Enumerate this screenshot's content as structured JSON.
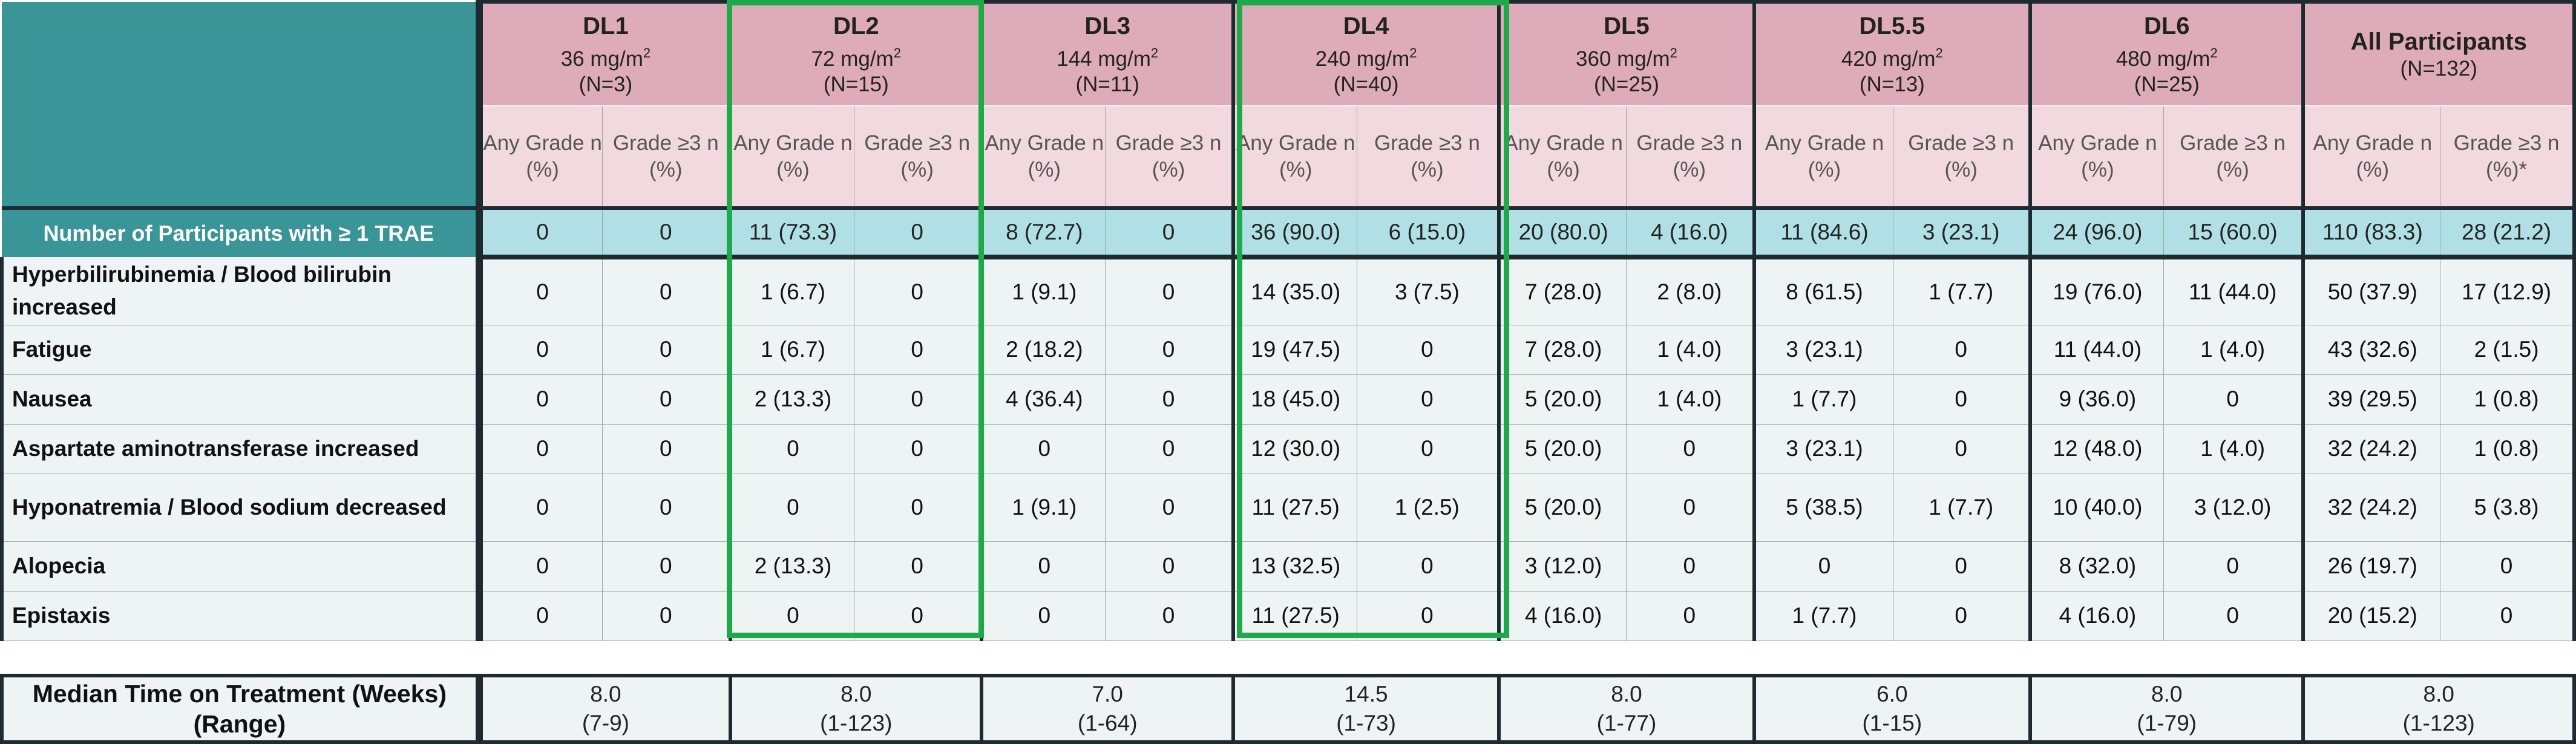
{
  "row_label_header": "",
  "dose_levels": [
    {
      "name": "DL1",
      "dose": "36 mg/m",
      "unit_sup": "2",
      "n": "(N=3)"
    },
    {
      "name": "DL2",
      "dose": "72 mg/m",
      "unit_sup": "2",
      "n": "(N=15)"
    },
    {
      "name": "DL3",
      "dose": "144 mg/m",
      "unit_sup": "2",
      "n": "(N=11)"
    },
    {
      "name": "DL4",
      "dose": "240 mg/m",
      "unit_sup": "2",
      "n": "(N=40)"
    },
    {
      "name": "DL5",
      "dose": "360 mg/m",
      "unit_sup": "2",
      "n": "(N=25)"
    },
    {
      "name": "DL5.5",
      "dose": "420 mg/m",
      "unit_sup": "2",
      "n": "(N=13)"
    },
    {
      "name": "DL6",
      "dose": "480 mg/m",
      "unit_sup": "2",
      "n": "(N=25)"
    },
    {
      "name": "All Participants",
      "dose": "",
      "unit_sup": "",
      "n": "(N=132)"
    }
  ],
  "subheaders": [
    [
      "Any Grade n (%)",
      "Grade ≥3 n (%)"
    ],
    [
      "Any Grade n (%)",
      "Grade ≥3 n (%)"
    ],
    [
      "Any Grade n (%)",
      "Grade ≥3 n (%)"
    ],
    [
      "Any Grade n (%)",
      "Grade ≥3 n (%)"
    ],
    [
      "Any Grade n (%)",
      "Grade ≥3 n (%)"
    ],
    [
      "Any Grade n (%)",
      "Grade ≥3 n (%)"
    ],
    [
      "Any Grade n (%)",
      "Grade ≥3 n (%)"
    ],
    [
      "Any Grade n (%)",
      "Grade ≥3 n (%)*"
    ]
  ],
  "trae_row": {
    "label": "Number of Participants with ≥ 1 TRAE",
    "values": [
      "0",
      "0",
      "11 (73.3)",
      "0",
      "8 (72.7)",
      "0",
      "36 (90.0)",
      "6 (15.0)",
      "20 (80.0)",
      "4 (16.0)",
      "11 (84.6)",
      "3 (23.1)",
      "24 (96.0)",
      "15 (60.0)",
      "110 (83.3)",
      "28 (21.2)"
    ]
  },
  "adverse_events": [
    {
      "label": "Hyperbilirubinemia / Blood bilirubin increased",
      "values": [
        "0",
        "0",
        "1 (6.7)",
        "0",
        "1 (9.1)",
        "0",
        "14 (35.0)",
        "3 (7.5)",
        "7 (28.0)",
        "2 (8.0)",
        "8 (61.5)",
        "1 (7.7)",
        "19 (76.0)",
        "11 (44.0)",
        "50 (37.9)",
        "17 (12.9)"
      ]
    },
    {
      "label": "Fatigue",
      "values": [
        "0",
        "0",
        "1 (6.7)",
        "0",
        "2 (18.2)",
        "0",
        "19 (47.5)",
        "0",
        "7 (28.0)",
        "1 (4.0)",
        "3 (23.1)",
        "0",
        "11 (44.0)",
        "1 (4.0)",
        "43 (32.6)",
        "2 (1.5)"
      ]
    },
    {
      "label": "Nausea",
      "values": [
        "0",
        "0",
        "2 (13.3)",
        "0",
        "4 (36.4)",
        "0",
        "18 (45.0)",
        "0",
        "5 (20.0)",
        "1 (4.0)",
        "1 (7.7)",
        "0",
        "9 (36.0)",
        "0",
        "39 (29.5)",
        "1 (0.8)"
      ]
    },
    {
      "label": "Aspartate aminotransferase increased",
      "values": [
        "0",
        "0",
        "0",
        "0",
        "0",
        "0",
        "12 (30.0)",
        "0",
        "5 (20.0)",
        "0",
        "3 (23.1)",
        "0",
        "12 (48.0)",
        "1 (4.0)",
        "32 (24.2)",
        "1 (0.8)"
      ]
    },
    {
      "label": "Hyponatremia / Blood sodium decreased",
      "values": [
        "0",
        "0",
        "0",
        "0",
        "1 (9.1)",
        "0",
        "11 (27.5)",
        "1 (2.5)",
        "5 (20.0)",
        "0",
        "5 (38.5)",
        "1 (7.7)",
        "10 (40.0)",
        "3 (12.0)",
        "32 (24.2)",
        "5 (3.8)"
      ]
    },
    {
      "label": "Alopecia",
      "values": [
        "0",
        "0",
        "2 (13.3)",
        "0",
        "0",
        "0",
        "13 (32.5)",
        "0",
        "3 (12.0)",
        "0",
        "0",
        "0",
        "8 (32.0)",
        "0",
        "26 (19.7)",
        "0"
      ]
    },
    {
      "label": "Epistaxis",
      "values": [
        "0",
        "0",
        "0",
        "0",
        "0",
        "0",
        "11 (27.5)",
        "0",
        "4 (16.0)",
        "0",
        "1 (7.7)",
        "0",
        "4 (16.0)",
        "0",
        "20 (15.2)",
        "0"
      ]
    }
  ],
  "median_row": {
    "label": "Median Time on Treatment (Weeks) (Range)",
    "values": [
      {
        "median": "8.0",
        "range": "(7-9)"
      },
      {
        "median": "8.0",
        "range": "(1-123)"
      },
      {
        "median": "7.0",
        "range": "(1-64)"
      },
      {
        "median": "14.5",
        "range": "(1-73)"
      },
      {
        "median": "8.0",
        "range": "(1-77)"
      },
      {
        "median": "6.0",
        "range": "(1-15)"
      },
      {
        "median": "8.0",
        "range": "(1-79)"
      },
      {
        "median": "8.0",
        "range": "(1-123)"
      }
    ]
  },
  "highlight_color": "#1faa4a",
  "highlighted_columns": [
    "DL2",
    "DL4"
  ]
}
